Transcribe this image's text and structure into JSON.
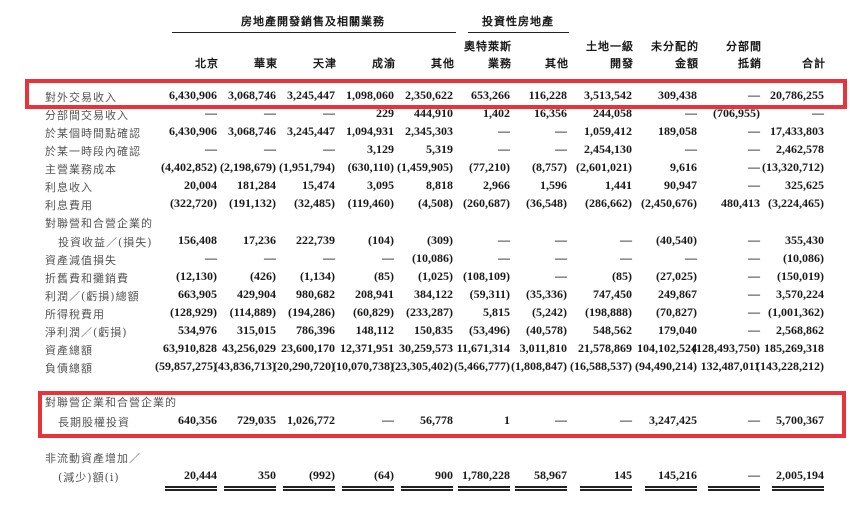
{
  "group_headers": {
    "property": "房地產開發銷售及相關業務",
    "investment": "投資性房地產"
  },
  "columns": [
    {
      "line1": "",
      "line2": "北京"
    },
    {
      "line1": "",
      "line2": "華東"
    },
    {
      "line1": "",
      "line2": "天津"
    },
    {
      "line1": "",
      "line2": "成渝"
    },
    {
      "line1": "",
      "line2": "其他"
    },
    {
      "line1": "奧特萊斯",
      "line2": "業務"
    },
    {
      "line1": "",
      "line2": "其他"
    },
    {
      "line1": "土地一級",
      "line2": "開發"
    },
    {
      "line1": "未分配的",
      "line2": "金額"
    },
    {
      "line1": "分部間",
      "line2": "抵銷"
    },
    {
      "line1": "",
      "line2": "合計"
    }
  ],
  "rows": [
    {
      "label": "對外交易收入",
      "values": [
        "6,430,906",
        "3,068,746",
        "3,245,447",
        "1,098,060",
        "2,350,622",
        "653,266",
        "116,228",
        "3,513,542",
        "309,438",
        "—",
        "20,786,255"
      ],
      "highlight": true
    },
    {
      "label": "分部間交易收入",
      "values": [
        "—",
        "—",
        "—",
        "229",
        "444,910",
        "1,402",
        "16,356",
        "244,058",
        "—",
        "(706,955)",
        "—"
      ]
    },
    {
      "label": "於某個時間點確認",
      "values": [
        "6,430,906",
        "3,068,746",
        "3,245,447",
        "1,094,931",
        "2,345,303",
        "—",
        "—",
        "1,059,412",
        "189,058",
        "—",
        "17,433,803"
      ]
    },
    {
      "label": "於某一時段內確認",
      "values": [
        "—",
        "—",
        "—",
        "3,129",
        "5,319",
        "—",
        "—",
        "2,454,130",
        "—",
        "—",
        "2,462,578"
      ]
    },
    {
      "label": "主營業務成本",
      "values": [
        "(4,402,852)",
        "(2,198,679)",
        "(1,951,794)",
        "(630,110)",
        "(1,459,905)",
        "(77,210)",
        "(8,757)",
        "(2,601,021)",
        "9,616",
        "—",
        "(13,320,712)"
      ]
    },
    {
      "label": "利息收入",
      "values": [
        "20,004",
        "181,284",
        "15,474",
        "3,095",
        "8,818",
        "2,966",
        "1,596",
        "1,441",
        "90,947",
        "—",
        "325,625"
      ]
    },
    {
      "label": "利息費用",
      "values": [
        "(322,720)",
        "(191,132)",
        "(32,485)",
        "(119,460)",
        "(4,508)",
        "(260,687)",
        "(36,548)",
        "(286,662)",
        "(2,450,676)",
        "480,413",
        "(3,224,465)"
      ]
    },
    {
      "label": "對聯營和合營企業的",
      "values": []
    },
    {
      "label": "投資收益／(損失)",
      "indent": true,
      "values": [
        "156,408",
        "17,236",
        "222,739",
        "(104)",
        "(309)",
        "—",
        "—",
        "—",
        "(40,540)",
        "—",
        "355,430"
      ]
    },
    {
      "label": "資產減值損失",
      "values": [
        "—",
        "—",
        "—",
        "—",
        "(10,086)",
        "—",
        "—",
        "—",
        "—",
        "—",
        "(10,086)"
      ]
    },
    {
      "label": "折舊費和攤銷費",
      "values": [
        "(12,130)",
        "(426)",
        "(1,134)",
        "(85)",
        "(1,025)",
        "(108,109)",
        "—",
        "(85)",
        "(27,025)",
        "—",
        "(150,019)"
      ]
    },
    {
      "label": "利潤／(虧損)總額",
      "values": [
        "663,905",
        "429,904",
        "980,682",
        "208,941",
        "384,122",
        "(59,311)",
        "(35,336)",
        "747,450",
        "249,867",
        "—",
        "3,570,224"
      ]
    },
    {
      "label": "所得稅費用",
      "values": [
        "(128,929)",
        "(114,889)",
        "(194,286)",
        "(60,829)",
        "(233,287)",
        "5,815",
        "(5,242)",
        "(198,888)",
        "(70,827)",
        "—",
        "(1,001,362)"
      ]
    },
    {
      "label": "淨利潤／(虧損)",
      "values": [
        "534,976",
        "315,015",
        "786,396",
        "148,112",
        "150,835",
        "(53,496)",
        "(40,578)",
        "548,562",
        "179,040",
        "—",
        "2,568,862"
      ]
    },
    {
      "label": "資產總額",
      "values": [
        "63,910,828",
        "43,256,029",
        "23,600,170",
        "12,371,951",
        "30,259,573",
        "11,671,314",
        "3,011,810",
        "21,578,869",
        "104,102,524",
        "(128,493,750)",
        "185,269,318"
      ]
    },
    {
      "label": "負債總額",
      "values": [
        "(59,857,275)",
        "(43,836,713)",
        "(20,290,720)",
        "(10,070,738)",
        "(23,305,402)",
        "(5,466,777)",
        "(1,808,847)",
        "(16,588,537)",
        "(94,490,214)",
        "132,487,011",
        "(143,228,212)"
      ]
    },
    {
      "label": "對聯營企業和合營企業的",
      "values": [],
      "highlight": true
    },
    {
      "label": "長期股權投資",
      "indent": true,
      "values": [
        "640,356",
        "729,035",
        "1,026,772",
        "—",
        "56,778",
        "1",
        "—",
        "—",
        "3,247,425",
        "—",
        "5,700,367"
      ],
      "highlight": true
    },
    {
      "label": "非流動資產增加／",
      "values": []
    },
    {
      "label": "(減少)額(i)",
      "indent": true,
      "values": [
        "20,444",
        "350",
        "(992)",
        "(64)",
        "900",
        "1,780,228",
        "58,967",
        "145",
        "145,216",
        "—",
        "2,005,194"
      ]
    }
  ],
  "highlight_color": "#e8333a"
}
